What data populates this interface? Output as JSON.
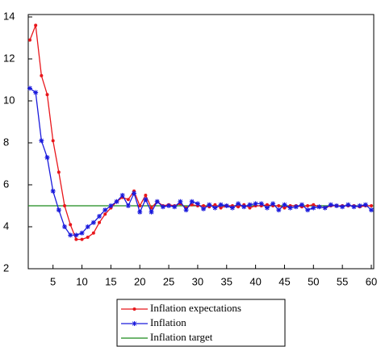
{
  "chart_data": {
    "type": "line",
    "x": [
      1,
      2,
      3,
      4,
      5,
      6,
      7,
      8,
      9,
      10,
      11,
      12,
      13,
      14,
      15,
      16,
      17,
      18,
      19,
      20,
      21,
      22,
      23,
      24,
      25,
      26,
      27,
      28,
      29,
      30,
      31,
      32,
      33,
      34,
      35,
      36,
      37,
      38,
      39,
      40,
      41,
      42,
      43,
      44,
      45,
      46,
      47,
      48,
      49,
      50,
      51,
      52,
      53,
      54,
      55,
      56,
      57,
      58,
      59,
      60
    ],
    "series": [
      {
        "name": "Inflation expectations",
        "color": "#e8161b",
        "marker": "dot",
        "values": [
          12.9,
          13.6,
          11.2,
          10.3,
          8.1,
          6.6,
          5.0,
          4.1,
          3.4,
          3.4,
          3.5,
          3.7,
          4.2,
          4.6,
          4.9,
          5.2,
          5.4,
          5.3,
          5.7,
          5.0,
          5.5,
          4.9,
          5.2,
          5.0,
          5.05,
          5.0,
          5.1,
          4.9,
          5.05,
          5.0,
          5.0,
          4.95,
          5.05,
          4.9,
          5.0,
          5.0,
          4.95,
          5.05,
          4.9,
          5.0,
          5.0,
          5.05,
          5.0,
          5.0,
          4.9,
          5.0,
          5.0,
          4.95,
          5.0,
          5.05,
          4.95,
          4.9,
          5.0,
          5.0,
          5.0,
          5.0,
          5.0,
          4.95,
          5.0,
          5.0
        ]
      },
      {
        "name": "Inflation",
        "color": "#1a1adc",
        "marker": "star",
        "values": [
          10.6,
          10.4,
          8.1,
          7.3,
          5.7,
          4.8,
          4.0,
          3.6,
          3.6,
          3.7,
          4.0,
          4.2,
          4.5,
          4.8,
          5.0,
          5.2,
          5.5,
          5.0,
          5.6,
          4.7,
          5.3,
          4.7,
          5.2,
          4.95,
          5.0,
          4.95,
          5.2,
          4.8,
          5.2,
          5.1,
          4.85,
          5.05,
          4.9,
          5.05,
          5.0,
          4.9,
          5.1,
          4.95,
          5.05,
          5.1,
          5.1,
          4.9,
          5.1,
          4.8,
          5.05,
          4.9,
          4.95,
          5.05,
          4.8,
          4.9,
          4.95,
          4.9,
          5.05,
          5.0,
          4.95,
          5.05,
          4.95,
          5.0,
          5.05,
          4.8
        ]
      }
    ],
    "target": {
      "name": "Inflation target",
      "color": "#1a8a1a",
      "value": 5
    },
    "xlim": [
      1,
      60
    ],
    "xticks": [
      5,
      10,
      15,
      20,
      25,
      30,
      35,
      40,
      45,
      50,
      55,
      60
    ],
    "ylim": [
      2,
      14
    ],
    "yticks": [
      2,
      4,
      6,
      8,
      10,
      12,
      14
    ],
    "legend": "bottom"
  }
}
